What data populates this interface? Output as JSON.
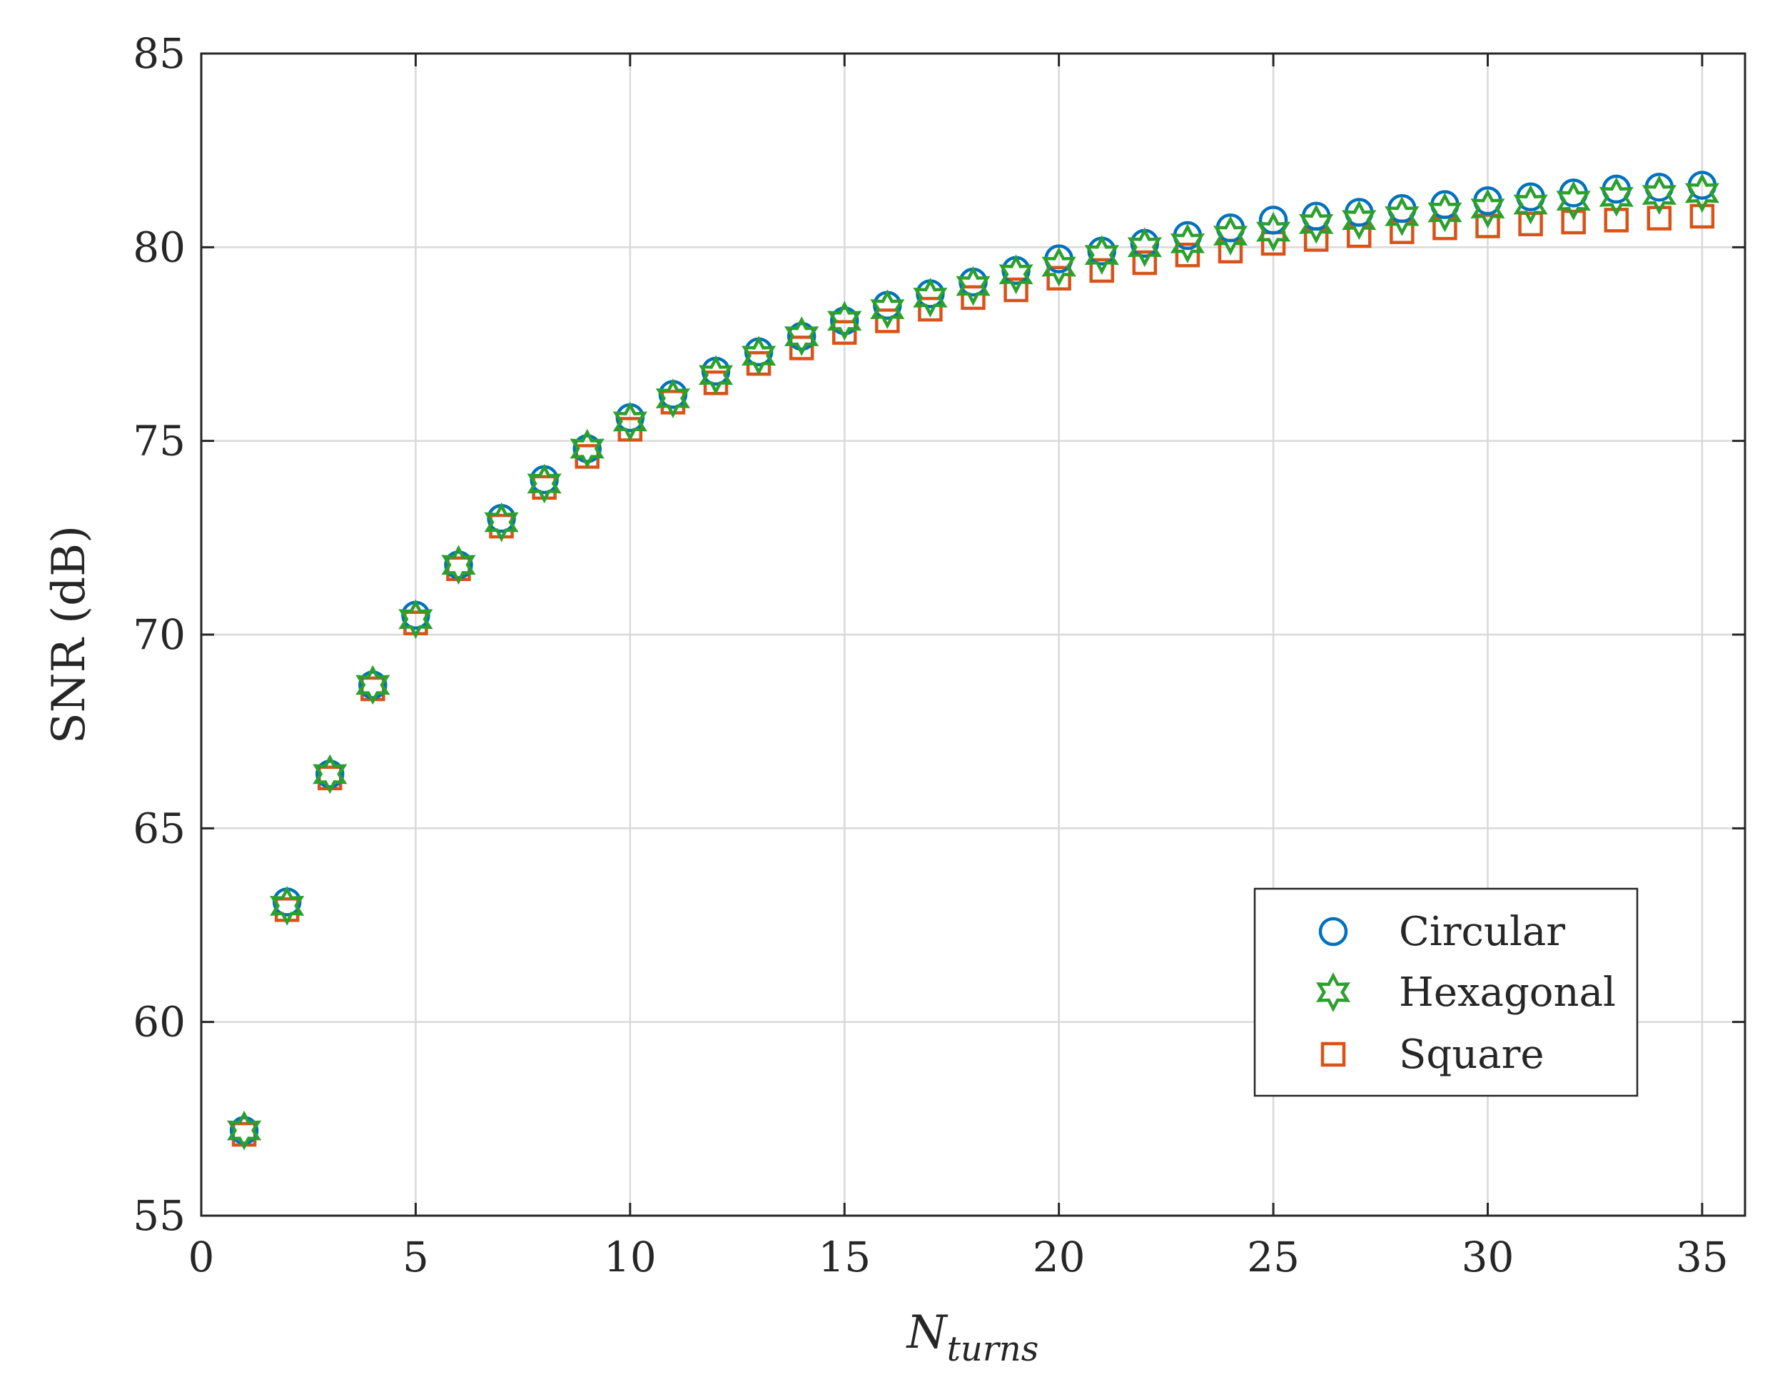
{
  "chart_data": {
    "type": "scatter",
    "title": "",
    "xlabel": "N",
    "xlabel_subscript": "turns",
    "ylabel": "SNR (dB)",
    "xlim": [
      0,
      36
    ],
    "ylim": [
      55,
      85
    ],
    "x_ticks": [
      0,
      5,
      10,
      15,
      20,
      25,
      30,
      35
    ],
    "y_ticks": [
      55,
      60,
      65,
      70,
      75,
      80,
      85
    ],
    "grid": true,
    "legend_position": "bottom-right",
    "x": [
      1,
      2,
      3,
      4,
      5,
      6,
      7,
      8,
      9,
      10,
      11,
      12,
      13,
      14,
      15,
      16,
      17,
      18,
      19,
      20,
      21,
      22,
      23,
      24,
      25,
      26,
      27,
      28,
      29,
      30,
      31,
      32,
      33,
      34,
      35
    ],
    "series": [
      {
        "name": "Circular",
        "marker": "circle",
        "color": "#0072BD",
        "values": [
          57.2,
          63.1,
          66.4,
          68.7,
          70.5,
          71.8,
          73.0,
          74.0,
          74.8,
          75.6,
          76.2,
          76.8,
          77.3,
          77.7,
          78.1,
          78.5,
          78.8,
          79.1,
          79.4,
          79.7,
          79.9,
          80.1,
          80.3,
          80.5,
          80.7,
          80.8,
          80.9,
          81.0,
          81.1,
          81.2,
          81.3,
          81.4,
          81.5,
          81.55,
          81.6
        ]
      },
      {
        "name": "Hexagonal",
        "marker": "hexagram",
        "color": "#2CA02C",
        "values": [
          57.2,
          63.0,
          66.4,
          68.7,
          70.4,
          71.8,
          72.9,
          73.9,
          74.8,
          75.5,
          76.1,
          76.7,
          77.2,
          77.7,
          78.1,
          78.4,
          78.7,
          79.0,
          79.3,
          79.5,
          79.8,
          80.0,
          80.1,
          80.3,
          80.4,
          80.6,
          80.7,
          80.8,
          80.9,
          81.0,
          81.1,
          81.2,
          81.3,
          81.35,
          81.4
        ]
      },
      {
        "name": "Square",
        "marker": "square",
        "color": "#D95319",
        "values": [
          57.1,
          62.9,
          66.3,
          68.6,
          70.3,
          71.7,
          72.8,
          73.8,
          74.6,
          75.3,
          76.0,
          76.5,
          77.0,
          77.4,
          77.8,
          78.1,
          78.4,
          78.7,
          78.9,
          79.2,
          79.4,
          79.6,
          79.8,
          79.9,
          80.1,
          80.2,
          80.3,
          80.4,
          80.5,
          80.55,
          80.6,
          80.65,
          80.7,
          80.75,
          80.8
        ]
      }
    ]
  }
}
